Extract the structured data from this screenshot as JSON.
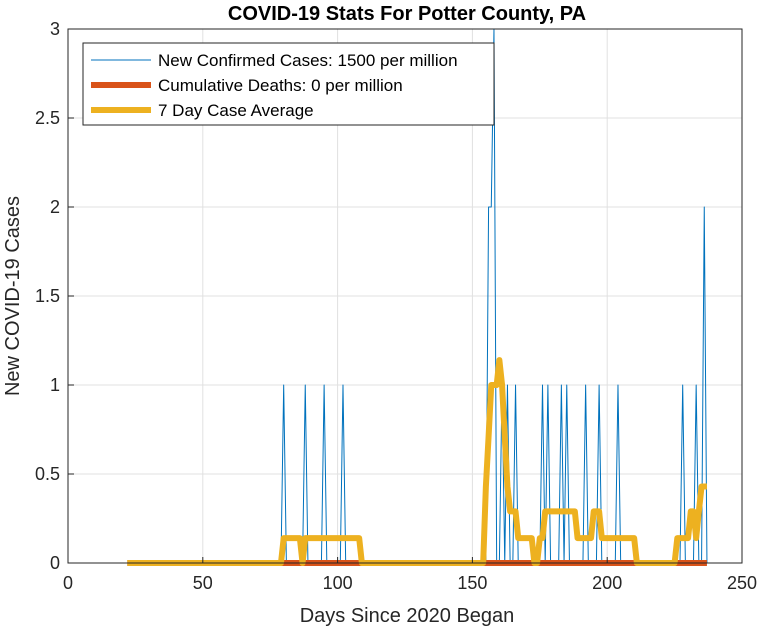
{
  "chart_data": {
    "type": "line",
    "title": "COVID-19 Stats For Potter County, PA",
    "xlabel": "Days Since 2020 Began",
    "ylabel": "New COVID-19 Cases",
    "xlim": [
      0,
      250
    ],
    "ylim": [
      0,
      3
    ],
    "xticks": [
      "0",
      "50",
      "100",
      "150",
      "200",
      "250"
    ],
    "yticks": [
      "0",
      "0.5",
      "1",
      "1.5",
      "2",
      "2.5",
      "3"
    ],
    "grid": true,
    "legend_position": "top-left",
    "series": [
      {
        "name": "New Confirmed Cases: 1500 per million",
        "color": "#0072BD",
        "width": 1,
        "points": [
          [
            22,
            0
          ],
          [
            79,
            0
          ],
          [
            80,
            1
          ],
          [
            81,
            0
          ],
          [
            87,
            0
          ],
          [
            88,
            1
          ],
          [
            89,
            0
          ],
          [
            94,
            0
          ],
          [
            95,
            1
          ],
          [
            96,
            0
          ],
          [
            101,
            0
          ],
          [
            102,
            1
          ],
          [
            103,
            0
          ],
          [
            155,
            0
          ],
          [
            156,
            2
          ],
          [
            157,
            2
          ],
          [
            158,
            3
          ],
          [
            159,
            0
          ],
          [
            160,
            0
          ],
          [
            161,
            1
          ],
          [
            162,
            0
          ],
          [
            163,
            1
          ],
          [
            164,
            0
          ],
          [
            165,
            0
          ],
          [
            166,
            1
          ],
          [
            167,
            0
          ],
          [
            175,
            0
          ],
          [
            176,
            1
          ],
          [
            177,
            0
          ],
          [
            178,
            1
          ],
          [
            179,
            0
          ],
          [
            182,
            0
          ],
          [
            183,
            1
          ],
          [
            184,
            0
          ],
          [
            185,
            1
          ],
          [
            186,
            0
          ],
          [
            191,
            0
          ],
          [
            192,
            1
          ],
          [
            193,
            0
          ],
          [
            196,
            0
          ],
          [
            197,
            1
          ],
          [
            198,
            0
          ],
          [
            203,
            0
          ],
          [
            204,
            1
          ],
          [
            205,
            0
          ],
          [
            227,
            0
          ],
          [
            228,
            1
          ],
          [
            229,
            0
          ],
          [
            232,
            0
          ],
          [
            233,
            1
          ],
          [
            234,
            0
          ],
          [
            235,
            0
          ],
          [
            236,
            2
          ],
          [
            237,
            0
          ]
        ]
      },
      {
        "name": "Cumulative Deaths: 0 per million",
        "color": "#D95319",
        "width": 6,
        "points": [
          [
            22,
            0
          ],
          [
            237,
            0
          ]
        ]
      },
      {
        "name": "7 Day Case Average",
        "color": "#EDB120",
        "width": 6,
        "points": [
          [
            22,
            0
          ],
          [
            79,
            0
          ],
          [
            80,
            0.14
          ],
          [
            86,
            0.14
          ],
          [
            87,
            0
          ],
          [
            88,
            0.14
          ],
          [
            108,
            0.14
          ],
          [
            109,
            0
          ],
          [
            154,
            0
          ],
          [
            155,
            0.43
          ],
          [
            156,
            0.71
          ],
          [
            157,
            1.0
          ],
          [
            159,
            1.0
          ],
          [
            160,
            1.14
          ],
          [
            161,
            1.0
          ],
          [
            162,
            0.71
          ],
          [
            163,
            0.43
          ],
          [
            164,
            0.29
          ],
          [
            166,
            0.29
          ],
          [
            167,
            0.14
          ],
          [
            168,
            0.14
          ],
          [
            169,
            0.14
          ],
          [
            172,
            0.14
          ],
          [
            173,
            0
          ],
          [
            174,
            0
          ],
          [
            175,
            0.14
          ],
          [
            176,
            0.14
          ],
          [
            177,
            0.29
          ],
          [
            185,
            0.29
          ],
          [
            186,
            0.29
          ],
          [
            187,
            0.29
          ],
          [
            188,
            0.29
          ],
          [
            189,
            0.14
          ],
          [
            194,
            0.14
          ],
          [
            195,
            0.29
          ],
          [
            197,
            0.29
          ],
          [
            198,
            0.14
          ],
          [
            210,
            0.14
          ],
          [
            211,
            0
          ],
          [
            225,
            0
          ],
          [
            226,
            0.14
          ],
          [
            230,
            0.14
          ],
          [
            231,
            0.29
          ],
          [
            232,
            0.29
          ],
          [
            233,
            0.14
          ],
          [
            234,
            0.29
          ],
          [
            235,
            0.43
          ],
          [
            237,
            0.43
          ]
        ]
      }
    ]
  }
}
